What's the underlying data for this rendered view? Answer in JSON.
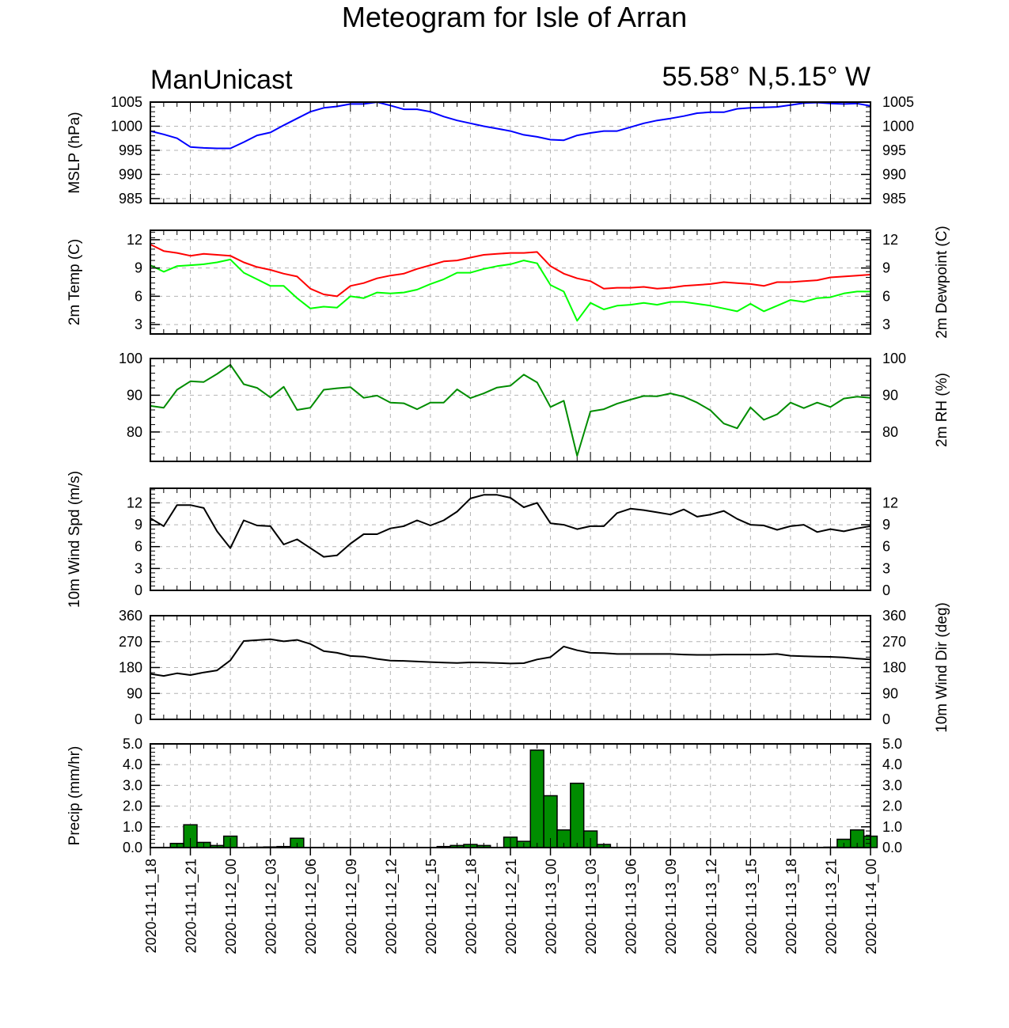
{
  "page": {
    "title": "Meteogram for Isle of Arran",
    "model": "ManUnicast",
    "location": "55.58° N,5.15° W"
  },
  "chart_data": {
    "type": "line",
    "x_tick_labels": [
      "2020-11-11_18",
      "2020-11-11_21",
      "2020-11-12_00",
      "2020-11-12_03",
      "2020-11-12_06",
      "2020-11-12_09",
      "2020-11-12_12",
      "2020-11-12_15",
      "2020-11-12_18",
      "2020-11-12_21",
      "2020-11-13_00",
      "2020-11-13_03",
      "2020-11-13_06",
      "2020-11-13_09",
      "2020-11-13_12",
      "2020-11-13_15",
      "2020-11-13_18",
      "2020-11-13_21",
      "2020-11-14_00"
    ],
    "x_hours_from_start": [
      0,
      1,
      2,
      3,
      4,
      5,
      6,
      7,
      8,
      9,
      10,
      11,
      12,
      13,
      14,
      15,
      16,
      17,
      18,
      19,
      20,
      21,
      22,
      23,
      24,
      25,
      26,
      27,
      28,
      29,
      30,
      31,
      32,
      33,
      34,
      35,
      36,
      37,
      38,
      39,
      40,
      41,
      42,
      43,
      44,
      45,
      46,
      47,
      48,
      49,
      50,
      51,
      52,
      53,
      54
    ],
    "grid": true,
    "panels": [
      {
        "id": "mslp",
        "ylabel_left": "MSLP (hPa)",
        "ylabel_right": "",
        "ylim": [
          984,
          1005
        ],
        "yticks": [
          985,
          990,
          995,
          1000,
          1005
        ],
        "ytick_labels_left": [
          "985",
          "990",
          "995",
          "1000",
          "1005"
        ],
        "ytick_labels_right": [
          "985",
          "990",
          "995",
          "1000",
          "1005"
        ],
        "series": [
          {
            "color": "#0000ff",
            "values": [
              999,
              998.3,
              997.5,
              995.7,
              995.5,
              995.4,
              995.4,
              996.7,
              998.1,
              998.7,
              1000.2,
              1001.6,
              1003,
              1003.8,
              1004.1,
              1004.6,
              1004.6,
              1005,
              1004.3,
              1003.5,
              1003.5,
              1003,
              1002,
              1001.2,
              1000.6,
              1000,
              999.5,
              999,
              998.2,
              997.8,
              997.2,
              997.1,
              998.1,
              998.6,
              999,
              999,
              999.8,
              1000.6,
              1001.2,
              1001.6,
              1002.1,
              1002.7,
              1002.9,
              1002.9,
              1003.6,
              1003.8,
              1003.9,
              1004,
              1004.4,
              1004.8,
              1004.9,
              1004.7,
              1004.6,
              1004.7,
              1004.2
            ]
          }
        ]
      },
      {
        "id": "temp",
        "ylabel_left": "2m Temp (C)",
        "ylabel_right": "2m Dewpoint (C)",
        "ylim": [
          2,
          13
        ],
        "yticks": [
          3,
          6,
          9,
          12
        ],
        "ytick_labels_left": [
          "3",
          "6",
          "9",
          "12"
        ],
        "ytick_labels_right": [
          "3",
          "6",
          "9",
          "12"
        ],
        "series": [
          {
            "color": "#ff0000",
            "values": [
              11.5,
              10.8,
              10.6,
              10.3,
              10.5,
              10.4,
              10.3,
              9.6,
              9.1,
              8.8,
              8.4,
              8.1,
              6.8,
              6.2,
              6.0,
              7.1,
              7.4,
              7.9,
              8.2,
              8.4,
              8.9,
              9.3,
              9.7,
              9.8,
              10.1,
              10.4,
              10.5,
              10.6,
              10.6,
              10.7,
              9.2,
              8.4,
              7.9,
              7.6,
              6.8,
              6.9,
              6.9,
              7.0,
              6.8,
              6.9,
              7.1,
              7.2,
              7.3,
              7.5,
              7.4,
              7.3,
              7.1,
              7.5,
              7.5,
              7.6,
              7.7,
              8.0,
              8.1,
              8.2,
              8.3
            ]
          },
          {
            "color": "#00ff00",
            "values": [
              9.3,
              8.6,
              9.2,
              9.3,
              9.4,
              9.6,
              9.9,
              8.5,
              7.8,
              7.1,
              7.1,
              5.8,
              4.7,
              4.9,
              4.8,
              6.0,
              5.8,
              6.4,
              6.3,
              6.4,
              6.7,
              7.3,
              7.8,
              8.5,
              8.5,
              8.9,
              9.2,
              9.4,
              9.8,
              9.5,
              7.2,
              6.5,
              3.4,
              5.3,
              4.6,
              5.0,
              5.1,
              5.3,
              5.1,
              5.4,
              5.4,
              5.2,
              5.0,
              4.7,
              4.4,
              5.2,
              4.4,
              5.0,
              5.6,
              5.4,
              5.8,
              5.9,
              6.3,
              6.5,
              6.5
            ]
          }
        ]
      },
      {
        "id": "rh",
        "ylabel_left": "",
        "ylabel_right": "2m RH (%)",
        "ylim": [
          72,
          100
        ],
        "yticks": [
          80,
          90,
          100
        ],
        "ytick_labels_left": [
          "80",
          "90",
          "100"
        ],
        "ytick_labels_right": [
          "80",
          "90",
          "100"
        ],
        "series": [
          {
            "color": "#008c00",
            "values": [
              87.1,
              86.6,
              91.5,
              93.8,
              93.6,
              95.8,
              98.3,
              93,
              92,
              89.4,
              92.3,
              86,
              86.6,
              91.5,
              91.9,
              92.2,
              89.3,
              89.9,
              88,
              87.8,
              86.2,
              88,
              88,
              91.6,
              89.2,
              90.5,
              92.1,
              92.6,
              95.6,
              93.5,
              86.8,
              88.5,
              73.5,
              85.6,
              86.2,
              87.7,
              88.8,
              89.8,
              89.7,
              90.5,
              89.6,
              88,
              85.9,
              82.3,
              81,
              86.7,
              83.3,
              84.8,
              88,
              86.5,
              88,
              86.8,
              89.1,
              89.6,
              89.3
            ]
          }
        ]
      },
      {
        "id": "wspd",
        "ylabel_left": "10m Wind Spd (m/s)",
        "ylabel_right": "",
        "ylim": [
          0,
          14
        ],
        "yticks": [
          0,
          3,
          6,
          9,
          12
        ],
        "ytick_labels_left": [
          "0",
          "3",
          "6",
          "9",
          "12"
        ],
        "ytick_labels_right": [
          "0",
          "3",
          "6",
          "9",
          "12"
        ],
        "series": [
          {
            "color": "#000000",
            "values": [
              9.9,
              8.8,
              11.7,
              11.7,
              11.3,
              8.1,
              5.8,
              9.6,
              8.9,
              8.8,
              6.3,
              7,
              5.8,
              4.6,
              4.8,
              6.4,
              7.7,
              7.7,
              8.5,
              8.8,
              9.6,
              8.9,
              9.6,
              10.8,
              12.6,
              13.1,
              13.1,
              12.7,
              11.4,
              12,
              9.2,
              9,
              8.4,
              8.8,
              8.8,
              10.6,
              11.2,
              11,
              10.7,
              10.4,
              11.1,
              10.1,
              10.4,
              10.9,
              9.8,
              9,
              8.9,
              8.3,
              8.8,
              9,
              8,
              8.4,
              8.1,
              8.5,
              8.8
            ]
          }
        ]
      },
      {
        "id": "wdir",
        "ylabel_left": "",
        "ylabel_right": "10m Wind Dir (deg)",
        "ylim": [
          0,
          360
        ],
        "yticks": [
          0,
          90,
          180,
          270,
          360
        ],
        "ytick_labels_left": [
          "0",
          "90",
          "180",
          "270",
          "360"
        ],
        "ytick_labels_right": [
          "0",
          "90",
          "180",
          "270",
          "360"
        ],
        "series": [
          {
            "color": "#000000",
            "values": [
              158,
              151,
              160,
              154,
              163,
              170,
              205,
              272,
              275,
              278,
              271,
              276,
              262,
              237,
              231,
              220,
              218,
              210,
              204,
              203,
              201,
              199,
              197,
              196,
              198,
              197,
              196,
              194,
              195,
              208,
              216,
              253,
              240,
              231,
              230,
              227,
              227,
              227,
              227,
              227,
              225,
              224,
              224,
              225,
              225,
              225,
              225,
              227,
              221,
              219,
              218,
              217,
              215,
              211,
              208
            ]
          }
        ]
      },
      {
        "id": "precip",
        "type": "bar",
        "ylabel_left": "Precip (mm/hr)",
        "ylabel_right": "",
        "ylim": [
          0,
          5
        ],
        "yticks": [
          0,
          1,
          2,
          3,
          4,
          5
        ],
        "ytick_labels_left": [
          "0.0",
          "1.0",
          "2.0",
          "3.0",
          "4.0",
          "5.0"
        ],
        "ytick_labels_right": [
          "0.0",
          "1.0",
          "2.0",
          "3.0",
          "4.0",
          "5.0"
        ],
        "series": [
          {
            "color": "#008c00",
            "values": [
              0,
              0,
              0.2,
              1.1,
              0.25,
              0.1,
              0.55,
              0,
              0.02,
              0.03,
              0.05,
              0.45,
              0,
              0,
              0,
              0,
              0,
              0,
              0,
              0,
              0,
              0,
              0.05,
              0.1,
              0.15,
              0.1,
              0,
              0.5,
              0.3,
              4.7,
              2.5,
              0.85,
              3.1,
              0.8,
              0.15,
              0,
              0,
              0,
              0,
              0,
              0,
              0,
              0,
              0,
              0,
              0,
              0,
              0,
              0,
              0,
              0,
              0.02,
              0.4,
              0.85,
              0.55
            ]
          }
        ]
      }
    ]
  }
}
